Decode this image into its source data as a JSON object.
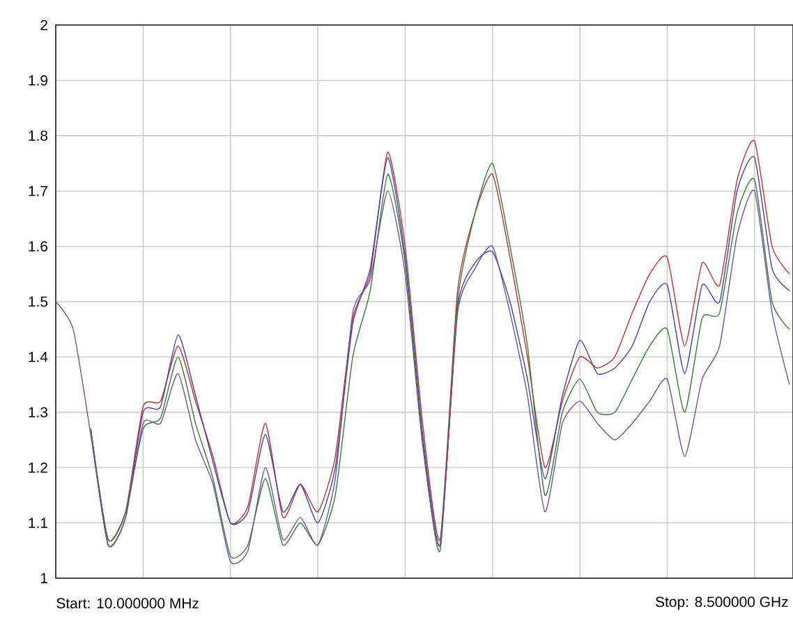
{
  "chart_data": {
    "type": "line",
    "categories": [
      null,
      null,
      null,
      null,
      null,
      null,
      null,
      null,
      null,
      null,
      null,
      null,
      null,
      null,
      null,
      null,
      null,
      null,
      null,
      null,
      null,
      null,
      null,
      null,
      null,
      null,
      null,
      null,
      null,
      null,
      null,
      null,
      null,
      null,
      null,
      null,
      null,
      null,
      null,
      null,
      null,
      null,
      null
    ],
    "series": [
      {
        "color": "#c03030",
        "values": [
          null,
          null,
          1.27,
          1.07,
          1.12,
          1.31,
          1.32,
          1.42,
          1.32,
          1.22,
          1.1,
          1.13,
          1.28,
          1.11,
          1.17,
          1.12,
          1.22,
          1.47,
          1.55,
          1.77,
          1.6,
          1.28,
          1.07,
          1.52,
          1.66,
          1.73,
          1.58,
          1.4,
          1.2,
          1.32,
          1.4,
          1.38,
          1.4,
          1.48,
          1.55,
          1.58,
          1.42,
          1.57,
          1.53,
          1.72,
          1.79,
          1.6,
          1.55
        ]
      },
      {
        "color": "#4040b0",
        "values": [
          null,
          null,
          1.27,
          1.06,
          1.11,
          1.3,
          1.31,
          1.44,
          1.33,
          1.21,
          1.1,
          1.12,
          1.26,
          1.12,
          1.17,
          1.1,
          1.2,
          1.46,
          1.56,
          1.76,
          1.58,
          1.26,
          1.06,
          1.49,
          1.57,
          1.59,
          1.5,
          1.36,
          1.18,
          1.33,
          1.43,
          1.37,
          1.38,
          1.42,
          1.5,
          1.53,
          1.37,
          1.53,
          1.5,
          1.7,
          1.76,
          1.56,
          1.52
        ]
      },
      {
        "color": "#308030",
        "values": [
          null,
          null,
          1.27,
          1.07,
          1.12,
          1.27,
          1.29,
          1.4,
          1.28,
          1.18,
          1.04,
          1.06,
          1.18,
          1.06,
          1.1,
          1.06,
          1.15,
          1.4,
          1.52,
          1.73,
          1.57,
          1.25,
          1.05,
          1.5,
          1.66,
          1.75,
          1.6,
          1.42,
          1.15,
          1.3,
          1.36,
          1.3,
          1.3,
          1.36,
          1.42,
          1.45,
          1.3,
          1.47,
          1.48,
          1.66,
          1.72,
          1.5,
          1.45
        ]
      },
      {
        "color": "#7050a0",
        "values": [
          1.5,
          1.45,
          1.26,
          1.06,
          1.11,
          1.28,
          1.28,
          1.37,
          1.25,
          1.17,
          1.03,
          1.05,
          1.2,
          1.07,
          1.11,
          1.06,
          1.18,
          1.48,
          1.54,
          1.7,
          1.55,
          1.24,
          1.06,
          1.48,
          1.56,
          1.6,
          1.48,
          1.33,
          1.12,
          1.28,
          1.32,
          1.28,
          1.25,
          1.28,
          1.32,
          1.36,
          1.22,
          1.36,
          1.42,
          1.62,
          1.7,
          1.48,
          1.35
        ]
      }
    ],
    "ylim": [
      1,
      2
    ],
    "yticks": [
      1,
      1.1,
      1.2,
      1.3,
      1.4,
      1.5,
      1.6,
      1.7,
      1.8,
      1.9,
      2
    ],
    "grid": true,
    "annotations": [
      "Start: 10.000000 MHz",
      "Stop: 8.500000 GHz"
    ]
  }
}
